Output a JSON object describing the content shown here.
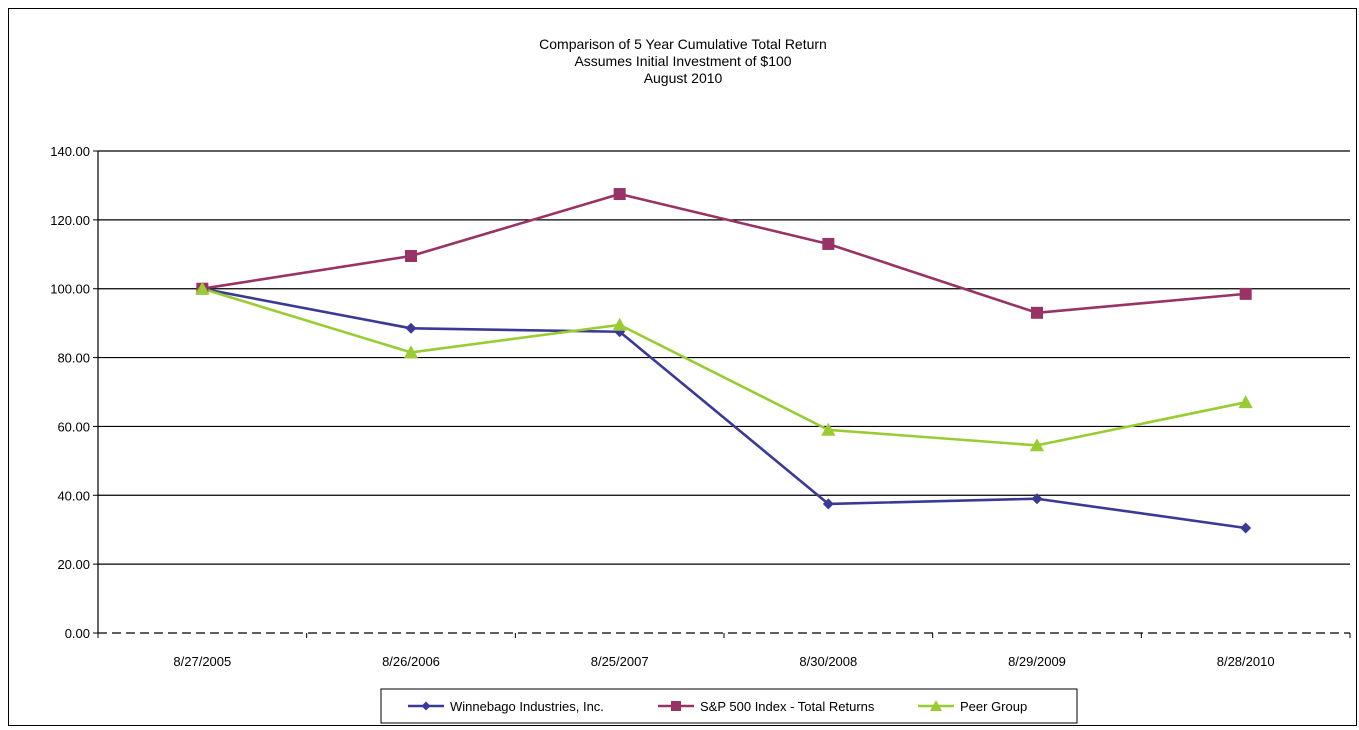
{
  "chart_data": {
    "type": "line",
    "title_lines": [
      "Comparison of 5 Year Cumulative Total Return",
      "Assumes Initial Investment of $100",
      "August 2010"
    ],
    "categories": [
      "8/27/2005",
      "8/26/2006",
      "8/25/2007",
      "8/30/2008",
      "8/29/2009",
      "8/28/2010"
    ],
    "y_ticks": [
      "0.00",
      "20.00",
      "40.00",
      "60.00",
      "80.00",
      "100.00",
      "120.00",
      "140.00"
    ],
    "ylim": [
      0,
      140
    ],
    "grid": true,
    "legend_position": "bottom",
    "series": [
      {
        "name": "Winnebago Industries, Inc.",
        "color": "#3a3a96",
        "marker": "diamond",
        "values": [
          100,
          88.5,
          87.5,
          37.5,
          39,
          30.5
        ]
      },
      {
        "name": "S&P 500 Index - Total Returns",
        "color": "#993366",
        "marker": "square",
        "values": [
          100,
          109.5,
          127.5,
          113,
          93,
          98.5
        ]
      },
      {
        "name": "Peer Group",
        "color": "#99cc33",
        "marker": "triangle",
        "values": [
          100,
          81.5,
          89.5,
          59,
          54.5,
          67
        ]
      }
    ]
  }
}
